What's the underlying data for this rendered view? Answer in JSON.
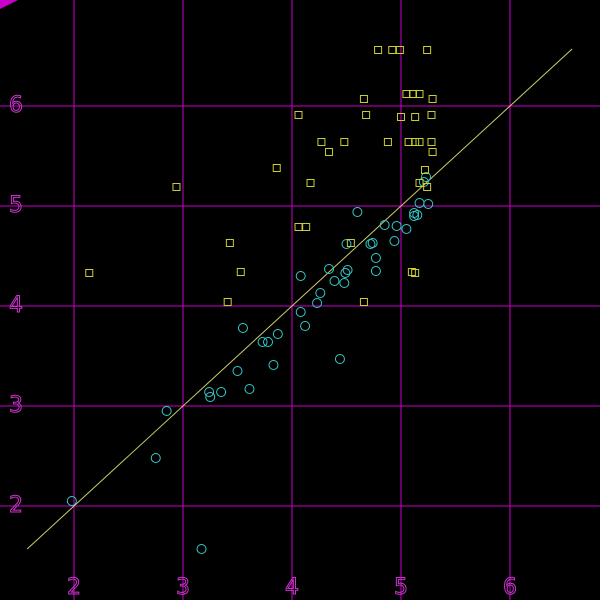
{
  "chart_data": {
    "type": "scatter",
    "background": "#000000",
    "grid": true,
    "grid_color": "#cc00cc",
    "tick_color": "#cc33cc",
    "xlim": [
      1.321,
      6.826
    ],
    "ylim": [
      1.06,
      7.06
    ],
    "xticks": [
      2,
      3,
      4,
      5,
      6
    ],
    "yticks": [
      2,
      3,
      4,
      5,
      6
    ],
    "series": [
      {
        "color": "#33cccc",
        "marker": "circle",
        "x": [
          1.98,
          2.75,
          2.85,
          3.17,
          3.24,
          3.25,
          3.35,
          3.5,
          3.61,
          3.55,
          3.73,
          3.78,
          3.87,
          3.83,
          4.08,
          4.08,
          4.12,
          4.23,
          4.26,
          4.34,
          4.39,
          4.44,
          4.48,
          4.49,
          4.51,
          4.5,
          4.6,
          4.72,
          4.74,
          4.77,
          4.77,
          4.85,
          4.94,
          4.96,
          5.05,
          5.12,
          5.12,
          5.15,
          5.17,
          5.21,
          5.25,
          5.23
        ],
        "values": [
          2.05,
          2.48,
          2.95,
          1.57,
          3.14,
          3.09,
          3.14,
          3.35,
          3.17,
          3.78,
          3.64,
          3.64,
          3.72,
          3.41,
          4.3,
          3.94,
          3.8,
          4.03,
          4.13,
          4.37,
          4.25,
          3.47,
          4.23,
          4.33,
          4.36,
          4.62,
          4.94,
          4.62,
          4.63,
          4.48,
          4.35,
          4.81,
          4.65,
          4.8,
          4.77,
          4.9,
          4.93,
          4.91,
          5.03,
          5.24,
          5.02,
          5.29
        ]
      },
      {
        "color": "#cccc33",
        "marker": "square",
        "x": [
          4.79,
          4.92,
          4.99,
          5.24,
          4.66,
          5.05,
          5.11,
          5.17,
          5.29,
          4.06,
          4.68,
          5.0,
          5.13,
          5.28,
          4.27,
          4.48,
          4.88,
          5.07,
          5.13,
          5.17,
          5.28,
          4.34,
          5.29,
          3.86,
          5.22,
          5.17,
          5.24,
          2.94,
          4.17,
          4.06,
          4.13,
          3.43,
          4.54,
          3.53,
          2.14,
          5.1,
          5.13,
          3.41,
          4.66
        ],
        "values": [
          6.56,
          6.56,
          6.56,
          6.56,
          6.07,
          6.12,
          6.12,
          6.12,
          6.07,
          5.91,
          5.91,
          5.89,
          5.89,
          5.91,
          5.64,
          5.64,
          5.64,
          5.64,
          5.64,
          5.64,
          5.64,
          5.54,
          5.54,
          5.38,
          5.36,
          5.23,
          5.19,
          5.19,
          5.23,
          4.79,
          4.79,
          4.63,
          4.63,
          4.34,
          4.33,
          4.34,
          4.33,
          4.04,
          4.04
        ]
      }
    ],
    "line": {
      "color": "#cccc66",
      "x": [
        1.57,
        6.57
      ],
      "values": [
        1.57,
        6.57
      ]
    }
  }
}
